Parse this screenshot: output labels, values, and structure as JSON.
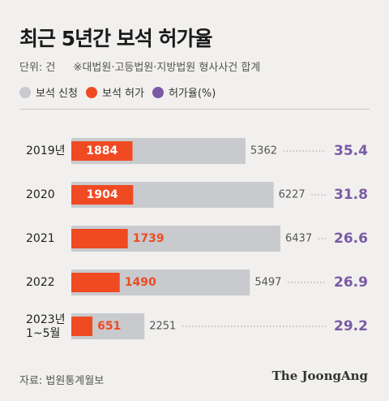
{
  "title": "최근 5년간 보석 허가율",
  "unit": "단위: 건",
  "note": "※대법원·고등법원·지방법원 형사사건 합계",
  "legend": [
    {
      "label": "보석 신청",
      "color": "#c8cacd"
    },
    {
      "label": "보석 허가",
      "color": "#f04a23"
    },
    {
      "label": "허가율(%)",
      "color": "#7a5aa5"
    }
  ],
  "chart_data": {
    "type": "bar",
    "categories": [
      [
        "2019년"
      ],
      [
        "2020"
      ],
      [
        "2021"
      ],
      [
        "2022"
      ],
      [
        "2023년",
        "1~5월"
      ]
    ],
    "series": [
      {
        "name": "보석 신청",
        "values": [
          5362,
          6227,
          6437,
          5497,
          2251
        ],
        "color": "#c8cacd"
      },
      {
        "name": "보석 허가",
        "values": [
          1884,
          1904,
          1739,
          1490,
          651
        ],
        "color": "#f04a23"
      },
      {
        "name": "허가율(%)",
        "values": [
          35.4,
          31.8,
          26.6,
          26.9,
          29.2
        ],
        "color": "#7a5aa5"
      }
    ],
    "orientation": "horizontal"
  },
  "source": "자료: 법원통계월보",
  "brand": "The JoongAng"
}
